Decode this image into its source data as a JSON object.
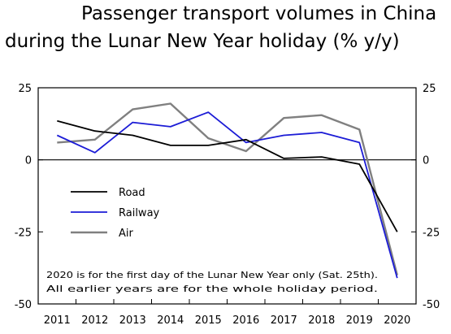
{
  "chart_data": {
    "type": "line",
    "title_lines": [
      "Passenger transport volumes in China",
      "during the Lunar New Year holiday (% y/y)"
    ],
    "x": [
      "2011",
      "2012",
      "2013",
      "2014",
      "2015",
      "2016",
      "2017",
      "2018",
      "2019",
      "2020"
    ],
    "series": [
      {
        "name": "Road",
        "color": "#000000",
        "values": [
          13.5,
          10,
          8.5,
          5,
          5,
          7,
          0.5,
          1,
          -1.5,
          -25
        ]
      },
      {
        "name": "Railway",
        "color": "#1c1cd6",
        "values": [
          8.5,
          2.5,
          13,
          11.5,
          16.5,
          6,
          8.5,
          9.5,
          6,
          -41
        ]
      },
      {
        "name": "Air",
        "color": "#808080",
        "values": [
          6,
          7,
          17.5,
          19.5,
          7.5,
          3,
          14.5,
          15.5,
          10.5,
          -40
        ]
      }
    ],
    "ylim": [
      -50,
      25
    ],
    "yticks": [
      "25",
      "0",
      "-25",
      "-50"
    ],
    "note_lines": [
      "2020 is for the first day of the Lunar New Year only (Sat. 25th).",
      "All earlier years are for the whole holiday period."
    ],
    "legend_position": "left",
    "grid": false
  }
}
